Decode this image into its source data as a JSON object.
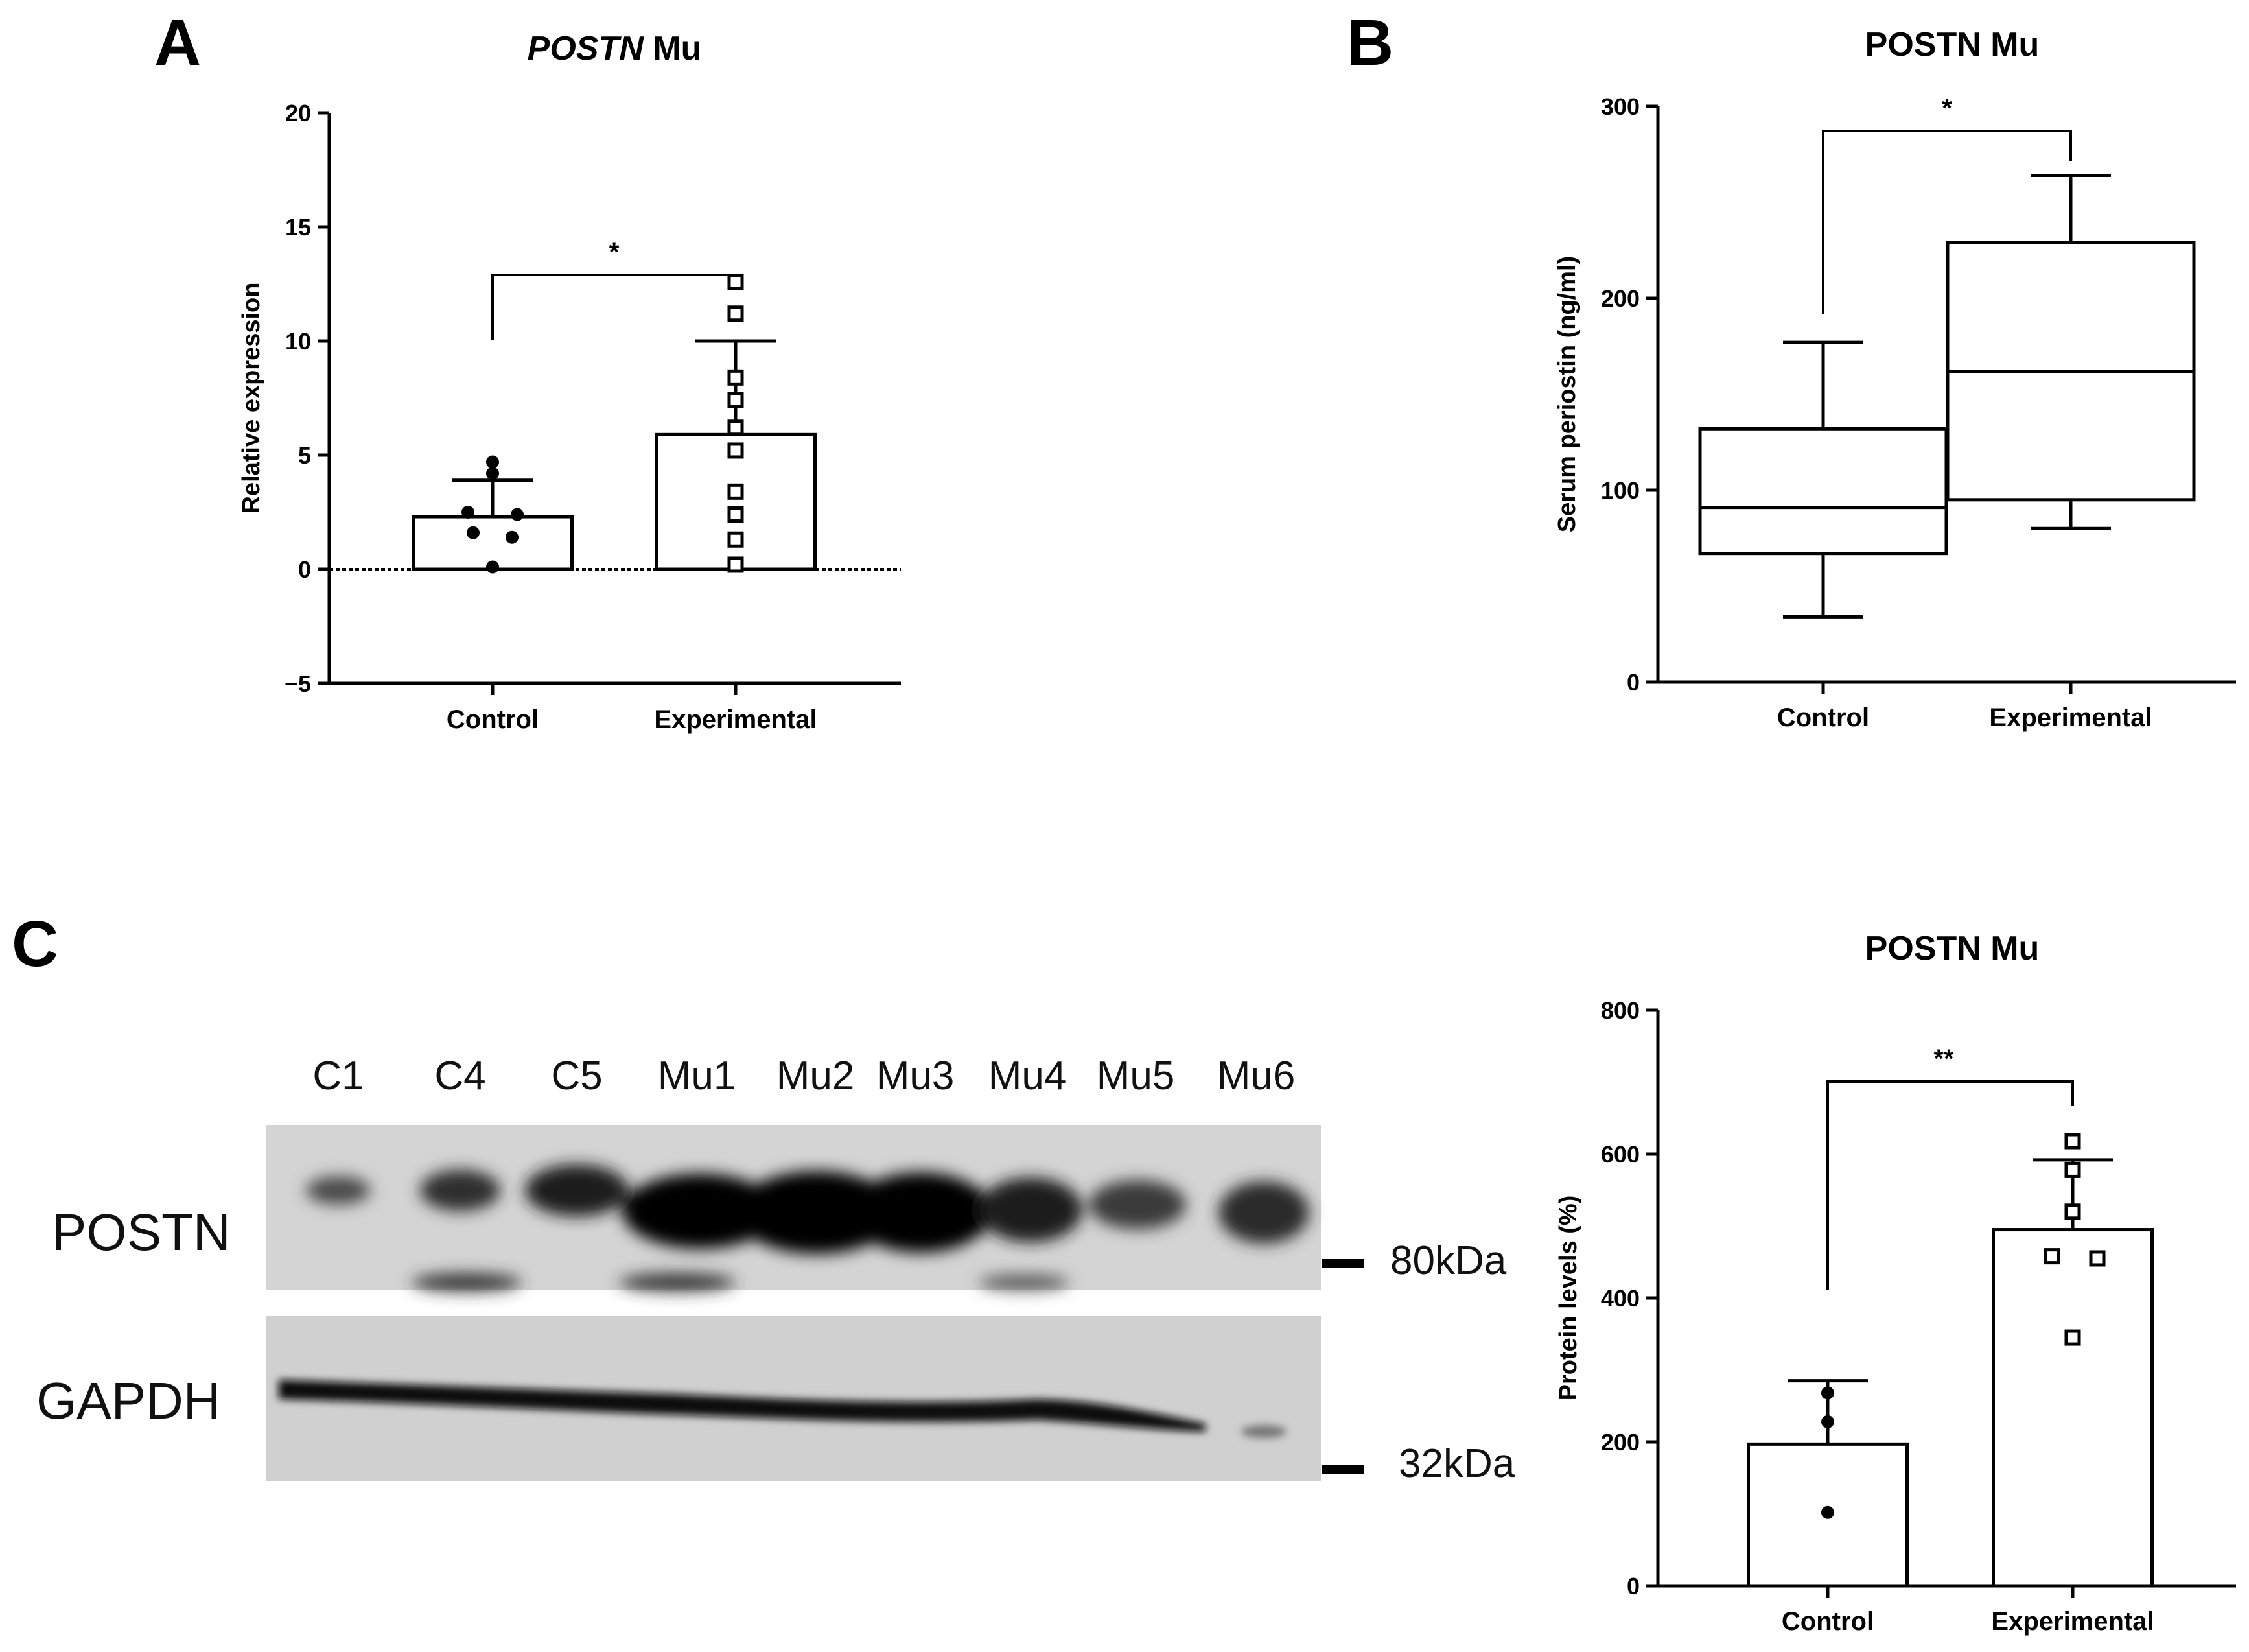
{
  "panels": {
    "a": "A",
    "b": "B",
    "c": "C"
  },
  "chart_data": [
    {
      "id": "A",
      "type": "bar",
      "title_italic": "POSTN",
      "title_rest": " Mu",
      "ylabel": "Relative expression",
      "xlabel": "",
      "ylim": [
        -5,
        20
      ],
      "yticks": [
        -5,
        0,
        5,
        10,
        15,
        20
      ],
      "yticklabels": [
        "−5",
        "0",
        "5",
        "10",
        "15",
        "20"
      ],
      "categories": [
        "Control",
        "Experimental"
      ],
      "values": [
        2.3,
        5.9
      ],
      "errors": [
        1.6,
        4.1
      ],
      "points": [
        [
          4.7,
          4.2,
          2.5,
          2.4,
          1.6,
          1.4,
          0.1
        ],
        [
          12.6,
          11.2,
          8.4,
          7.4,
          6.2,
          5.2,
          3.4,
          2.4,
          1.3,
          0.2
        ]
      ],
      "significance": "*",
      "zero_line": true
    },
    {
      "id": "B",
      "type": "box",
      "title": "POSTN Mu",
      "ylabel": "Serum periostin (ng/ml)",
      "xlabel": "",
      "ylim": [
        0,
        300
      ],
      "yticks": [
        0,
        100,
        200,
        300
      ],
      "yticklabels": [
        "0",
        "100",
        "200",
        "300"
      ],
      "categories": [
        "Control",
        "Experimental"
      ],
      "boxes": [
        {
          "min": 34,
          "q1": 67,
          "median": 91,
          "q3": 132,
          "max": 177
        },
        {
          "min": 80,
          "q1": 95,
          "median": 162,
          "q3": 229,
          "max": 264
        }
      ],
      "significance": "*"
    },
    {
      "id": "C",
      "type": "bar",
      "title": "POSTN Mu",
      "ylabel": "Protein levels (%)",
      "xlabel": "",
      "ylim": [
        0,
        800
      ],
      "yticks": [
        0,
        200,
        400,
        600,
        800
      ],
      "yticklabels": [
        "0",
        "200",
        "400",
        "600",
        "800"
      ],
      "categories": [
        "Control",
        "Experimental"
      ],
      "values": [
        197,
        495
      ],
      "errors": [
        88,
        97
      ],
      "points": [
        [
          268,
          228,
          102
        ],
        [
          618,
          578,
          520,
          458,
          455,
          345
        ]
      ],
      "significance": "**"
    }
  ],
  "blot": {
    "lanes": [
      "C1",
      "C4",
      "C5",
      "Mu1",
      "Mu2",
      "Mu3",
      "Mu4",
      "Mu5",
      "Mu6"
    ],
    "bands": [
      "POSTN",
      "GAPDH"
    ],
    "markers": [
      "80kDa",
      "32kDa"
    ]
  }
}
